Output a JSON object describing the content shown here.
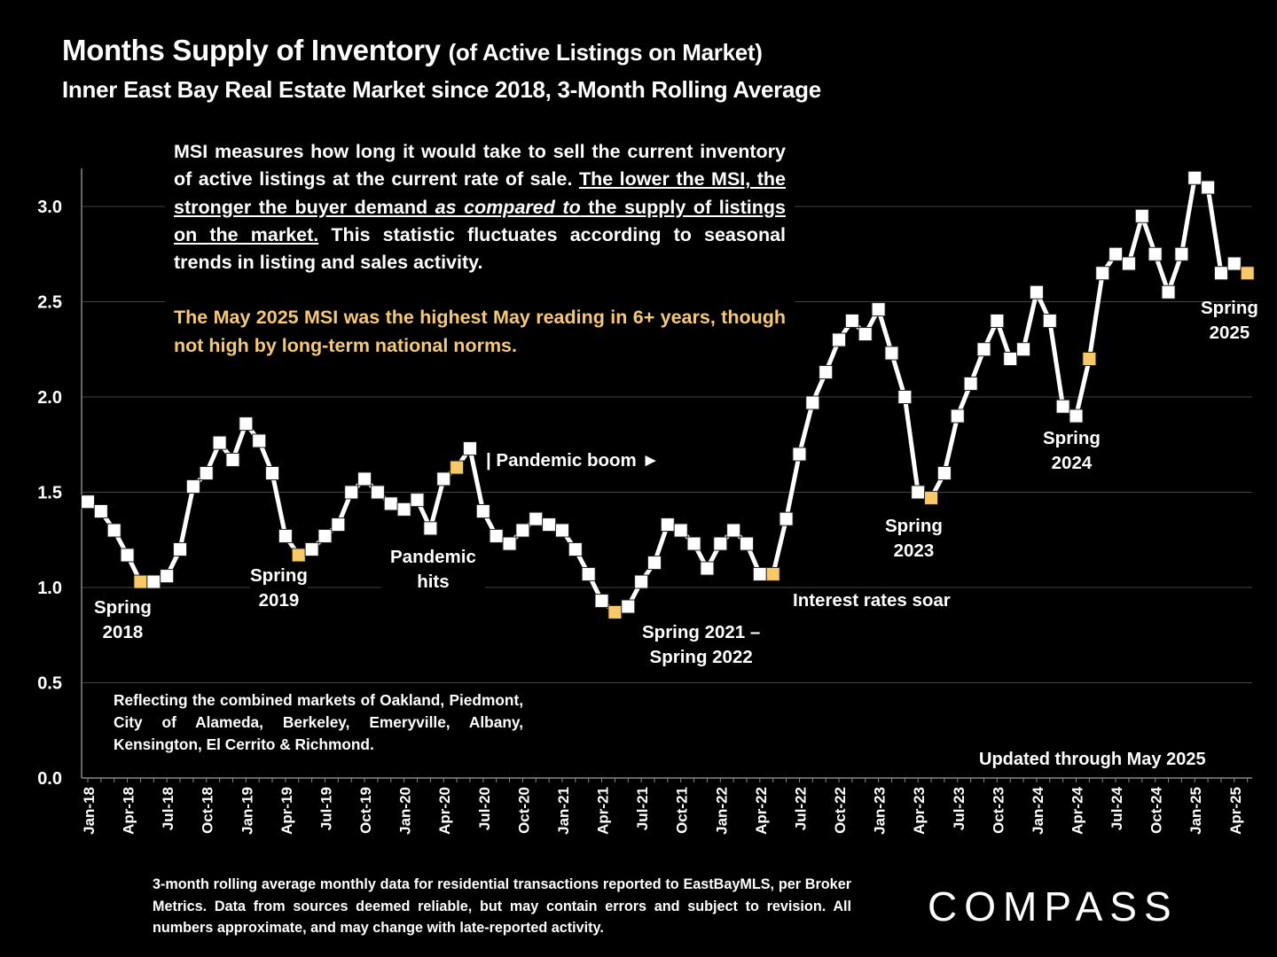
{
  "title": {
    "main": "Months Supply of Inventory",
    "paren": "(of Active Listings on Market)",
    "subtitle": "Inner East Bay Real Estate Market since 2018, 3-Month Rolling Average"
  },
  "description": {
    "p1_a": "MSI measures how long it would take to sell the current inventory of active listings at the current rate of sale. ",
    "p1_u1": "The lower the MSI, the stronger the buyer demand ",
    "p1_ui": "as compared to",
    "p1_u2": " the supply of listings on the market.",
    "p1_b": " This statistic fluctuates according to seasonal trends in listing and sales activity.",
    "highlight": "The May 2025 MSI was the highest May reading in 6+ years, though not high by long-term national norms."
  },
  "markets_note": "Reflecting the combined markets of Oakland, Piedmont, City of Alameda, Berkeley, Emeryville, Albany, Kensington, El Cerrito & Richmond.",
  "updated": "Updated through May 2025",
  "footer": "3-month rolling average monthly data for residential transactions reported to EastBayMLS, per Broker Metrics. Data from sources deemed reliable, but may contain errors and subject to revision. All numbers approximate, and may change with late-reported activity.",
  "logo": "COMPASS",
  "annotations": {
    "spring2018": "Spring\n2018",
    "spring2019": "Spring\n2019",
    "pandemic_hits": "Pandemic\nhits",
    "pandemic_boom": "| Pandemic boom ►",
    "spring2021_22": "Spring 2021 –\nSpring 2022",
    "interest_rates": "Interest rates soar",
    "spring2023": "Spring\n2023",
    "spring2024": "Spring\n2024",
    "spring2025": "Spring\n2025"
  },
  "colors": {
    "background": "#000000",
    "line": "#ffffff",
    "marker": "#ffffff",
    "highlight_marker": "#f9c867",
    "highlight_text": "#f5c97a",
    "grid": "#444444"
  },
  "chart_data": {
    "type": "line",
    "title": "Months Supply of Inventory",
    "xlabel": "",
    "ylabel": "",
    "ylim": [
      0,
      3.2
    ],
    "yticks": [
      "0.0",
      "0.5",
      "1.0",
      "1.5",
      "2.0",
      "2.5",
      "3.0"
    ],
    "xtick_labels": [
      "Jan-18",
      "Apr-18",
      "Jul-18",
      "Oct-18",
      "Jan-19",
      "Apr-19",
      "Jul-19",
      "Oct-19",
      "Jan-20",
      "Apr-20",
      "Jul-20",
      "Oct-20",
      "Jan-21",
      "Apr-21",
      "Jul-21",
      "Oct-21",
      "Jan-22",
      "Apr-22",
      "Jul-22",
      "Oct-22",
      "Jan-23",
      "Apr-23",
      "Jul-23",
      "Oct-23",
      "Jan-24",
      "Apr-24",
      "Jul-24",
      "Oct-24",
      "Jan-25",
      "Apr-25"
    ],
    "grid": true,
    "x_start": "Jan-18",
    "x_end": "May-25",
    "values": [
      1.45,
      1.4,
      1.3,
      1.17,
      1.03,
      1.03,
      1.06,
      1.2,
      1.53,
      1.6,
      1.76,
      1.67,
      1.86,
      1.77,
      1.6,
      1.27,
      1.17,
      1.2,
      1.27,
      1.33,
      1.5,
      1.57,
      1.5,
      1.44,
      1.41,
      1.46,
      1.31,
      1.57,
      1.63,
      1.73,
      1.4,
      1.27,
      1.23,
      1.3,
      1.36,
      1.33,
      1.3,
      1.2,
      1.07,
      0.93,
      0.87,
      0.9,
      1.03,
      1.13,
      1.33,
      1.3,
      1.23,
      1.1,
      1.23,
      1.3,
      1.23,
      1.07,
      1.07,
      1.36,
      1.7,
      1.97,
      2.13,
      2.3,
      2.4,
      2.33,
      2.46,
      2.23,
      2.0,
      1.5,
      1.47,
      1.6,
      1.9,
      2.07,
      2.25,
      2.4,
      2.2,
      2.25,
      2.55,
      2.4,
      1.95,
      1.9,
      2.2,
      2.65,
      2.75,
      2.7,
      2.95,
      2.75,
      2.55,
      2.75,
      3.15,
      3.1,
      2.65,
      2.7,
      2.65
    ],
    "highlighted_months": [
      "May-18",
      "May-19",
      "May-20",
      "May-21",
      "May-22",
      "May-23",
      "May-24",
      "May-25"
    ]
  }
}
